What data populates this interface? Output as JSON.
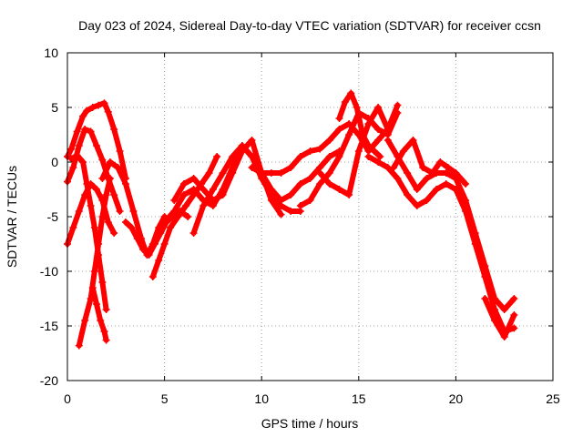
{
  "chart_data": {
    "type": "scatter",
    "title": "Day 023 of 2024, Sidereal Day-to-day VTEC variation (SDTVAR) for receiver ccsn",
    "xlabel": "GPS time / hours",
    "ylabel": "SDTVAR / TECUs",
    "xlim": [
      0,
      25
    ],
    "ylim": [
      -20,
      10
    ],
    "xticks": [
      0,
      5,
      10,
      15,
      20,
      25
    ],
    "yticks": [
      -20,
      -15,
      -10,
      -5,
      0,
      5,
      10
    ],
    "xtick_labels": [
      "0",
      "5",
      "10",
      "15",
      "20",
      "25"
    ],
    "ytick_labels": [
      "-20",
      "-15",
      "-10",
      "-5",
      "0",
      "5",
      "10"
    ],
    "grid": true,
    "marker": "+",
    "color": "#ff0000",
    "series": [
      {
        "name": "track-1",
        "x": [
          0.0,
          0.2,
          0.5,
          0.8,
          1.0,
          1.3,
          1.6,
          1.9,
          2.1,
          2.4,
          2.7,
          3.0
        ],
        "y": [
          0.5,
          1.2,
          2.8,
          4.2,
          4.7,
          5.0,
          5.2,
          5.4,
          4.6,
          3.0,
          1.0,
          -1.5
        ]
      },
      {
        "name": "track-2",
        "x": [
          0.0,
          0.3,
          0.6,
          0.9,
          1.2,
          1.5,
          1.8,
          2.1,
          2.4,
          2.7
        ],
        "y": [
          -1.8,
          -0.5,
          1.5,
          3.0,
          2.8,
          1.5,
          0.2,
          -1.5,
          -3.0,
          -4.5
        ]
      },
      {
        "name": "track-3",
        "x": [
          0.0,
          0.3,
          0.6,
          0.9,
          1.2,
          1.5,
          1.8,
          2.1,
          2.4
        ],
        "y": [
          -7.5,
          -6.0,
          -4.5,
          -3.0,
          -2.0,
          -2.5,
          -3.5,
          -5.5,
          -6.5
        ]
      },
      {
        "name": "track-4",
        "x": [
          0.2,
          0.5,
          0.8,
          1.0,
          1.2,
          1.4,
          1.6,
          1.8,
          2.0
        ],
        "y": [
          0.3,
          0.6,
          0.0,
          -2.0,
          -4.0,
          -6.0,
          -8.5,
          -11.0,
          -13.5
        ]
      },
      {
        "name": "track-5",
        "x": [
          0.6,
          0.9,
          1.2,
          1.4,
          1.6,
          1.8,
          2.0,
          2.2
        ],
        "y": [
          -16.8,
          -14.5,
          -12.5,
          -10.0,
          -7.5,
          -5.0,
          -3.0,
          -1.5
        ]
      },
      {
        "name": "track-6",
        "x": [
          1.3,
          1.5,
          1.7,
          1.9,
          2.0
        ],
        "y": [
          -11.5,
          -13.0,
          -14.5,
          -15.5,
          -16.3
        ]
      },
      {
        "name": "track-7",
        "x": [
          1.8,
          2.2,
          2.6,
          3.0,
          3.4,
          3.8,
          4.1,
          4.4,
          4.7,
          5.0
        ],
        "y": [
          -1.5,
          0.0,
          -0.5,
          -2.0,
          -4.5,
          -7.0,
          -8.5,
          -7.5,
          -6.0,
          -5.0
        ]
      },
      {
        "name": "track-8",
        "x": [
          3.0,
          3.3,
          3.6,
          3.9,
          4.2,
          4.5,
          4.8,
          5.1,
          5.4,
          5.8,
          6.2
        ],
        "y": [
          -5.5,
          -6.0,
          -7.0,
          -8.0,
          -8.5,
          -7.5,
          -6.5,
          -5.5,
          -5.0,
          -4.5,
          -5.0
        ]
      },
      {
        "name": "track-9",
        "x": [
          4.4,
          4.7,
          5.0,
          5.3,
          5.7,
          6.1,
          6.5,
          6.9,
          7.3,
          7.7
        ],
        "y": [
          -10.5,
          -9.0,
          -7.5,
          -6.0,
          -5.0,
          -4.0,
          -3.0,
          -2.0,
          -1.0,
          0.5
        ]
      },
      {
        "name": "track-10",
        "x": [
          5.0,
          5.5,
          6.0,
          6.5,
          7.0,
          7.5,
          8.0,
          8.5,
          9.0,
          9.5,
          10.0,
          10.5,
          11.0,
          11.5,
          12.0
        ],
        "y": [
          -5.5,
          -4.5,
          -3.0,
          -2.5,
          -3.5,
          -4.0,
          -2.5,
          -0.5,
          1.5,
          0.5,
          -1.5,
          -3.0,
          -4.0,
          -4.5,
          -4.5
        ]
      },
      {
        "name": "track-11",
        "x": [
          5.5,
          6.0,
          6.5,
          7.0,
          7.5,
          8.0,
          8.5,
          9.0,
          9.5,
          10.0,
          10.5,
          11.0
        ],
        "y": [
          -3.5,
          -2.0,
          -1.5,
          -2.5,
          -3.5,
          -3.0,
          -1.0,
          1.0,
          2.0,
          -1.0,
          -3.5,
          -4.8
        ]
      },
      {
        "name": "track-12",
        "x": [
          6.5,
          7.0,
          7.5,
          8.0,
          8.5,
          9.0,
          9.5,
          10.0,
          10.5,
          11.0,
          11.5,
          12.0,
          12.5,
          13.0,
          13.5,
          14.0
        ],
        "y": [
          -6.5,
          -4.0,
          -2.5,
          -1.0,
          0.5,
          1.5,
          0.5,
          -1.0,
          -2.5,
          -3.5,
          -3.0,
          -2.0,
          -1.5,
          -0.5,
          0.5,
          1.0
        ]
      },
      {
        "name": "track-13",
        "x": [
          9.5,
          10.0,
          10.5,
          11.0,
          11.5,
          12.0,
          12.5,
          13.0,
          13.5,
          14.0,
          14.5,
          15.0,
          15.5,
          16.0,
          16.5
        ],
        "y": [
          -0.5,
          -1.0,
          -1.0,
          -1.0,
          -0.5,
          0.5,
          1.0,
          1.2,
          2.0,
          3.0,
          3.5,
          2.5,
          1.0,
          2.0,
          3.0
        ]
      },
      {
        "name": "track-14",
        "x": [
          12.0,
          12.5,
          13.0,
          13.5,
          14.0,
          14.5,
          15.0,
          15.5,
          16.0,
          16.5,
          17.0
        ],
        "y": [
          -4.0,
          -3.5,
          -2.0,
          -1.0,
          0.5,
          2.5,
          4.5,
          4.0,
          3.0,
          2.5,
          4.5
        ]
      },
      {
        "name": "track-15",
        "x": [
          13.0,
          13.5,
          14.0,
          14.5,
          15.0,
          15.5,
          16.0,
          16.5,
          17.0
        ],
        "y": [
          -1.0,
          -2.0,
          -2.5,
          -3.0,
          1.0,
          3.5,
          5.0,
          3.0,
          5.2
        ]
      },
      {
        "name": "track-16",
        "x": [
          14.0,
          14.3,
          14.6,
          14.9,
          15.2,
          15.5,
          15.8,
          16.1
        ],
        "y": [
          4.0,
          5.5,
          6.3,
          5.0,
          2.5,
          1.5,
          1.0,
          0.5
        ]
      },
      {
        "name": "track-17",
        "x": [
          15.5,
          16.0,
          16.5,
          17.0,
          17.5,
          18.0,
          18.5,
          19.0,
          19.5,
          20.0,
          20.5,
          21.0,
          21.5,
          22.0,
          22.5,
          23.0
        ],
        "y": [
          0.5,
          0.0,
          -0.5,
          -1.5,
          -3.0,
          -4.0,
          -3.5,
          -2.5,
          -2.0,
          -2.5,
          -4.5,
          -7.5,
          -10.5,
          -13.5,
          -15.5,
          -15.2
        ]
      },
      {
        "name": "track-18",
        "x": [
          16.5,
          17.0,
          17.5,
          18.0,
          18.5,
          19.0,
          19.5,
          20.0,
          20.5,
          21.0,
          21.5,
          22.0,
          22.5,
          23.0
        ],
        "y": [
          2.0,
          0.5,
          -1.0,
          -2.5,
          -1.5,
          -1.0,
          -1.0,
          -1.5,
          -3.5,
          -6.5,
          -9.5,
          -12.5,
          -13.5,
          -12.5
        ]
      },
      {
        "name": "track-19",
        "x": [
          16.8,
          17.3,
          17.8,
          18.3,
          18.8,
          19.2,
          19.6,
          20.0,
          20.5
        ],
        "y": [
          -0.5,
          1.0,
          2.0,
          -0.5,
          -1.0,
          0.0,
          -0.5,
          -1.0,
          -2.0
        ]
      },
      {
        "name": "track-20",
        "x": [
          21.5,
          22.0,
          22.5,
          23.0
        ],
        "y": [
          -12.5,
          -14.5,
          -16.0,
          -14.0
        ]
      }
    ]
  }
}
